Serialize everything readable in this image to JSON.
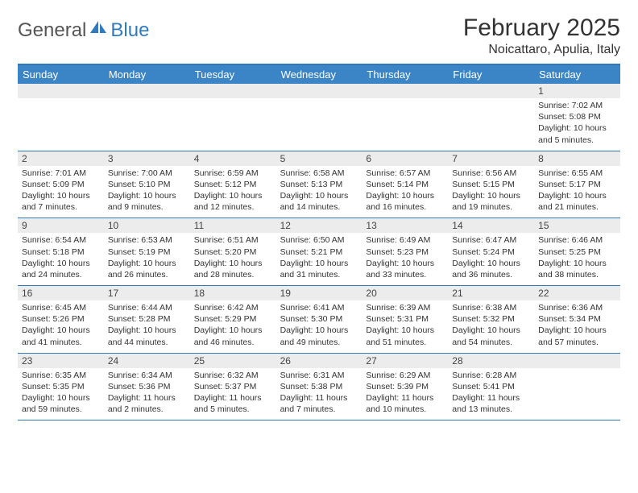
{
  "logo": {
    "part1": "General",
    "part2": "Blue"
  },
  "title": "February 2025",
  "location": "Noicattaro, Apulia, Italy",
  "colors": {
    "header_bg": "#3b85c6",
    "header_border": "#3078b8",
    "daynum_bg": "#ececec",
    "text": "#333333",
    "logo_grey": "#555555",
    "logo_blue": "#2f7bbf"
  },
  "dayNames": [
    "Sunday",
    "Monday",
    "Tuesday",
    "Wednesday",
    "Thursday",
    "Friday",
    "Saturday"
  ],
  "weeks": [
    [
      {
        "n": "",
        "lines": []
      },
      {
        "n": "",
        "lines": []
      },
      {
        "n": "",
        "lines": []
      },
      {
        "n": "",
        "lines": []
      },
      {
        "n": "",
        "lines": []
      },
      {
        "n": "",
        "lines": []
      },
      {
        "n": "1",
        "lines": [
          "Sunrise: 7:02 AM",
          "Sunset: 5:08 PM",
          "Daylight: 10 hours and 5 minutes."
        ]
      }
    ],
    [
      {
        "n": "2",
        "lines": [
          "Sunrise: 7:01 AM",
          "Sunset: 5:09 PM",
          "Daylight: 10 hours and 7 minutes."
        ]
      },
      {
        "n": "3",
        "lines": [
          "Sunrise: 7:00 AM",
          "Sunset: 5:10 PM",
          "Daylight: 10 hours and 9 minutes."
        ]
      },
      {
        "n": "4",
        "lines": [
          "Sunrise: 6:59 AM",
          "Sunset: 5:12 PM",
          "Daylight: 10 hours and 12 minutes."
        ]
      },
      {
        "n": "5",
        "lines": [
          "Sunrise: 6:58 AM",
          "Sunset: 5:13 PM",
          "Daylight: 10 hours and 14 minutes."
        ]
      },
      {
        "n": "6",
        "lines": [
          "Sunrise: 6:57 AM",
          "Sunset: 5:14 PM",
          "Daylight: 10 hours and 16 minutes."
        ]
      },
      {
        "n": "7",
        "lines": [
          "Sunrise: 6:56 AM",
          "Sunset: 5:15 PM",
          "Daylight: 10 hours and 19 minutes."
        ]
      },
      {
        "n": "8",
        "lines": [
          "Sunrise: 6:55 AM",
          "Sunset: 5:17 PM",
          "Daylight: 10 hours and 21 minutes."
        ]
      }
    ],
    [
      {
        "n": "9",
        "lines": [
          "Sunrise: 6:54 AM",
          "Sunset: 5:18 PM",
          "Daylight: 10 hours and 24 minutes."
        ]
      },
      {
        "n": "10",
        "lines": [
          "Sunrise: 6:53 AM",
          "Sunset: 5:19 PM",
          "Daylight: 10 hours and 26 minutes."
        ]
      },
      {
        "n": "11",
        "lines": [
          "Sunrise: 6:51 AM",
          "Sunset: 5:20 PM",
          "Daylight: 10 hours and 28 minutes."
        ]
      },
      {
        "n": "12",
        "lines": [
          "Sunrise: 6:50 AM",
          "Sunset: 5:21 PM",
          "Daylight: 10 hours and 31 minutes."
        ]
      },
      {
        "n": "13",
        "lines": [
          "Sunrise: 6:49 AM",
          "Sunset: 5:23 PM",
          "Daylight: 10 hours and 33 minutes."
        ]
      },
      {
        "n": "14",
        "lines": [
          "Sunrise: 6:47 AM",
          "Sunset: 5:24 PM",
          "Daylight: 10 hours and 36 minutes."
        ]
      },
      {
        "n": "15",
        "lines": [
          "Sunrise: 6:46 AM",
          "Sunset: 5:25 PM",
          "Daylight: 10 hours and 38 minutes."
        ]
      }
    ],
    [
      {
        "n": "16",
        "lines": [
          "Sunrise: 6:45 AM",
          "Sunset: 5:26 PM",
          "Daylight: 10 hours and 41 minutes."
        ]
      },
      {
        "n": "17",
        "lines": [
          "Sunrise: 6:44 AM",
          "Sunset: 5:28 PM",
          "Daylight: 10 hours and 44 minutes."
        ]
      },
      {
        "n": "18",
        "lines": [
          "Sunrise: 6:42 AM",
          "Sunset: 5:29 PM",
          "Daylight: 10 hours and 46 minutes."
        ]
      },
      {
        "n": "19",
        "lines": [
          "Sunrise: 6:41 AM",
          "Sunset: 5:30 PM",
          "Daylight: 10 hours and 49 minutes."
        ]
      },
      {
        "n": "20",
        "lines": [
          "Sunrise: 6:39 AM",
          "Sunset: 5:31 PM",
          "Daylight: 10 hours and 51 minutes."
        ]
      },
      {
        "n": "21",
        "lines": [
          "Sunrise: 6:38 AM",
          "Sunset: 5:32 PM",
          "Daylight: 10 hours and 54 minutes."
        ]
      },
      {
        "n": "22",
        "lines": [
          "Sunrise: 6:36 AM",
          "Sunset: 5:34 PM",
          "Daylight: 10 hours and 57 minutes."
        ]
      }
    ],
    [
      {
        "n": "23",
        "lines": [
          "Sunrise: 6:35 AM",
          "Sunset: 5:35 PM",
          "Daylight: 10 hours and 59 minutes."
        ]
      },
      {
        "n": "24",
        "lines": [
          "Sunrise: 6:34 AM",
          "Sunset: 5:36 PM",
          "Daylight: 11 hours and 2 minutes."
        ]
      },
      {
        "n": "25",
        "lines": [
          "Sunrise: 6:32 AM",
          "Sunset: 5:37 PM",
          "Daylight: 11 hours and 5 minutes."
        ]
      },
      {
        "n": "26",
        "lines": [
          "Sunrise: 6:31 AM",
          "Sunset: 5:38 PM",
          "Daylight: 11 hours and 7 minutes."
        ]
      },
      {
        "n": "27",
        "lines": [
          "Sunrise: 6:29 AM",
          "Sunset: 5:39 PM",
          "Daylight: 11 hours and 10 minutes."
        ]
      },
      {
        "n": "28",
        "lines": [
          "Sunrise: 6:28 AM",
          "Sunset: 5:41 PM",
          "Daylight: 11 hours and 13 minutes."
        ]
      },
      {
        "n": "",
        "lines": []
      }
    ]
  ]
}
